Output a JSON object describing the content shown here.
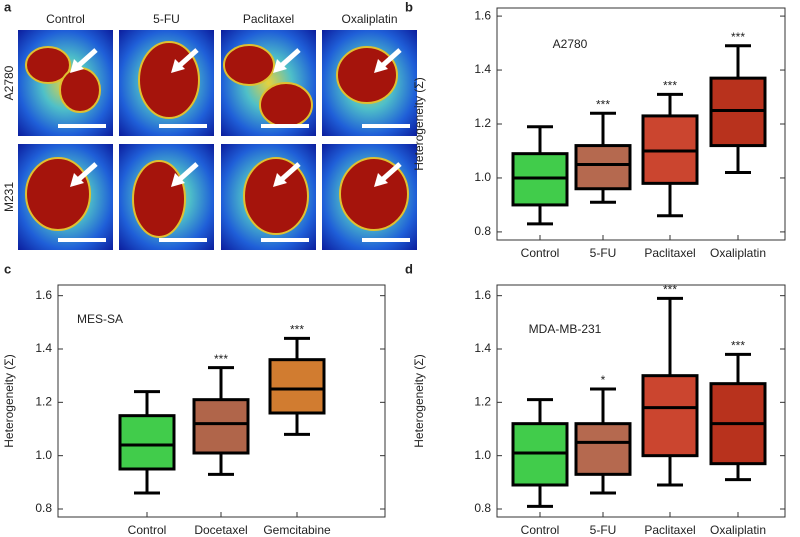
{
  "panel_a": {
    "label": "a",
    "columns": [
      "Control",
      "5-FU",
      "Paclitaxel",
      "Oxaliplatin"
    ],
    "rows": [
      "A2780",
      "M231"
    ]
  },
  "chart_data": [
    {
      "type": "box",
      "label": "b",
      "annotation": "A2780",
      "y_label": "Heterogeneity (Σ)",
      "categories": [
        "Control",
        "5-FU",
        "Paclitaxel",
        "Oxaliplatin"
      ],
      "colors": [
        "#41cc4b",
        "#b5694f",
        "#cb452f",
        "#b8321d"
      ],
      "boxes": [
        {
          "min": 0.83,
          "q1": 0.9,
          "median": 1.0,
          "q3": 1.09,
          "max": 1.19
        },
        {
          "min": 0.91,
          "q1": 0.96,
          "median": 1.05,
          "q3": 1.12,
          "max": 1.24
        },
        {
          "min": 0.86,
          "q1": 0.98,
          "median": 1.1,
          "q3": 1.23,
          "max": 1.31
        },
        {
          "min": 1.02,
          "q1": 1.12,
          "median": 1.25,
          "q3": 1.37,
          "max": 1.49
        }
      ],
      "significance": [
        null,
        "***",
        "***",
        "***"
      ],
      "ylim": [
        0.77,
        1.63
      ],
      "yticks": [
        0.8,
        {
          "value": 1,
          "label": "1.0"
        },
        1.2,
        1.4,
        1.6
      ]
    },
    {
      "type": "box",
      "label": "c",
      "annotation": "MES-SA",
      "y_label": "Heterogeneity (Σ)",
      "categories": [
        "Control",
        "Docetaxel",
        "Gemcitabine"
      ],
      "colors": [
        "#41cc4b",
        "#b0654a",
        "#d17c30"
      ],
      "boxes": [
        {
          "min": 0.86,
          "q1": 0.95,
          "median": 1.04,
          "q3": 1.15,
          "max": 1.24
        },
        {
          "min": 0.93,
          "q1": 1.01,
          "median": 1.12,
          "q3": 1.21,
          "max": 1.33
        },
        {
          "min": 1.08,
          "q1": 1.16,
          "median": 1.25,
          "q3": 1.36,
          "max": 1.44
        }
      ],
      "significance": [
        null,
        "***",
        "***"
      ],
      "ylim": [
        0.77,
        1.64
      ],
      "yticks": [
        0.8,
        {
          "value": 1,
          "label": "1.0"
        },
        1.2,
        1.4,
        1.6
      ]
    },
    {
      "type": "box",
      "label": "d",
      "annotation": "MDA-MB-231",
      "y_label": "Heterogeneity (Σ)",
      "categories": [
        "Control",
        "5-FU",
        "Paclitaxel",
        "Oxaliplatin"
      ],
      "colors": [
        "#41cc4b",
        "#b5694f",
        "#cb452f",
        "#b8321d"
      ],
      "boxes": [
        {
          "min": 0.81,
          "q1": 0.89,
          "median": 1.01,
          "q3": 1.12,
          "max": 1.21
        },
        {
          "min": 0.86,
          "q1": 0.93,
          "median": 1.05,
          "q3": 1.12,
          "max": 1.25
        },
        {
          "min": 0.89,
          "q1": 1.0,
          "median": 1.18,
          "q3": 1.3,
          "max": 1.59
        },
        {
          "min": 0.91,
          "q1": 0.97,
          "median": 1.12,
          "q3": 1.27,
          "max": 1.38
        }
      ],
      "significance": [
        null,
        "*",
        "***",
        "***"
      ],
      "ylim": [
        0.77,
        1.64
      ],
      "yticks": [
        0.8,
        {
          "value": 1,
          "label": "1.0"
        },
        1.2,
        1.4,
        1.6
      ]
    }
  ]
}
